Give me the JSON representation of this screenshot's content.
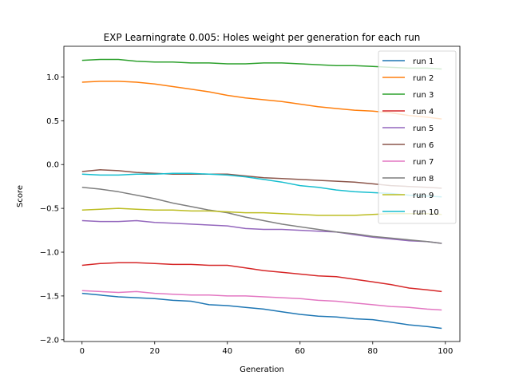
{
  "chart_data": {
    "type": "line",
    "title": "EXP Learningrate 0.005: Holes weight per generation for each run",
    "xlabel": "Generation",
    "ylabel": "Score",
    "xlim": [
      -5,
      104
    ],
    "ylim": [
      -2.02,
      1.35
    ],
    "xticks": [
      0,
      20,
      40,
      60,
      80,
      100
    ],
    "yticks": [
      -2.0,
      -1.5,
      -1.0,
      -0.5,
      0.0,
      0.5,
      1.0
    ],
    "ytick_labels": [
      "−2.0",
      "−1.5",
      "−1.0",
      "−0.5",
      "0.0",
      "0.5",
      "1.0"
    ],
    "grid": false,
    "legend_position": "top-right",
    "x": [
      0,
      5,
      10,
      15,
      20,
      25,
      30,
      35,
      40,
      45,
      50,
      55,
      60,
      65,
      70,
      75,
      80,
      85,
      90,
      95,
      99
    ],
    "series": [
      {
        "name": "run 1",
        "color": "#1f77b4",
        "values": [
          -1.47,
          -1.49,
          -1.51,
          -1.52,
          -1.53,
          -1.55,
          -1.56,
          -1.6,
          -1.61,
          -1.63,
          -1.65,
          -1.68,
          -1.71,
          -1.73,
          -1.74,
          -1.76,
          -1.77,
          -1.8,
          -1.83,
          -1.85,
          -1.87
        ]
      },
      {
        "name": "run 2",
        "color": "#ff7f0e",
        "values": [
          0.94,
          0.95,
          0.95,
          0.94,
          0.92,
          0.89,
          0.86,
          0.83,
          0.79,
          0.76,
          0.74,
          0.72,
          0.69,
          0.66,
          0.64,
          0.62,
          0.61,
          0.59,
          0.56,
          0.54,
          0.52
        ]
      },
      {
        "name": "run 3",
        "color": "#2ca02c",
        "values": [
          1.19,
          1.2,
          1.2,
          1.18,
          1.17,
          1.17,
          1.16,
          1.16,
          1.15,
          1.15,
          1.16,
          1.16,
          1.15,
          1.14,
          1.13,
          1.13,
          1.12,
          1.11,
          1.1,
          1.1,
          1.09
        ]
      },
      {
        "name": "run 4",
        "color": "#d62728",
        "values": [
          -1.15,
          -1.13,
          -1.12,
          -1.12,
          -1.13,
          -1.14,
          -1.14,
          -1.15,
          -1.15,
          -1.18,
          -1.21,
          -1.23,
          -1.25,
          -1.27,
          -1.28,
          -1.31,
          -1.34,
          -1.37,
          -1.41,
          -1.43,
          -1.45
        ]
      },
      {
        "name": "run 5",
        "color": "#9467bd",
        "values": [
          -0.64,
          -0.65,
          -0.65,
          -0.64,
          -0.66,
          -0.67,
          -0.68,
          -0.69,
          -0.7,
          -0.73,
          -0.74,
          -0.74,
          -0.75,
          -0.76,
          -0.77,
          -0.8,
          -0.83,
          -0.85,
          -0.87,
          -0.88,
          -0.9
        ]
      },
      {
        "name": "run 6",
        "color": "#8c564b",
        "values": [
          -0.08,
          -0.06,
          -0.07,
          -0.09,
          -0.1,
          -0.11,
          -0.11,
          -0.11,
          -0.11,
          -0.13,
          -0.15,
          -0.16,
          -0.17,
          -0.18,
          -0.19,
          -0.2,
          -0.22,
          -0.24,
          -0.25,
          -0.26,
          -0.27
        ]
      },
      {
        "name": "run 7",
        "color": "#e377c2",
        "values": [
          -1.44,
          -1.45,
          -1.46,
          -1.45,
          -1.47,
          -1.48,
          -1.49,
          -1.49,
          -1.5,
          -1.5,
          -1.51,
          -1.52,
          -1.53,
          -1.55,
          -1.56,
          -1.58,
          -1.6,
          -1.62,
          -1.63,
          -1.65,
          -1.66
        ]
      },
      {
        "name": "run 8",
        "color": "#7f7f7f",
        "values": [
          -0.26,
          -0.28,
          -0.31,
          -0.35,
          -0.39,
          -0.44,
          -0.48,
          -0.52,
          -0.55,
          -0.6,
          -0.64,
          -0.68,
          -0.71,
          -0.74,
          -0.77,
          -0.79,
          -0.82,
          -0.84,
          -0.86,
          -0.88,
          -0.9
        ]
      },
      {
        "name": "run 9",
        "color": "#bcbd22",
        "values": [
          -0.52,
          -0.51,
          -0.5,
          -0.51,
          -0.52,
          -0.52,
          -0.53,
          -0.53,
          -0.54,
          -0.55,
          -0.55,
          -0.56,
          -0.57,
          -0.58,
          -0.58,
          -0.58,
          -0.57,
          -0.56,
          -0.56,
          -0.56,
          -0.57
        ]
      },
      {
        "name": "run 10",
        "color": "#17becf",
        "values": [
          -0.11,
          -0.12,
          -0.12,
          -0.11,
          -0.11,
          -0.1,
          -0.1,
          -0.11,
          -0.12,
          -0.14,
          -0.17,
          -0.2,
          -0.24,
          -0.26,
          -0.29,
          -0.31,
          -0.32,
          -0.33,
          -0.35,
          -0.36,
          -0.37
        ]
      }
    ]
  }
}
